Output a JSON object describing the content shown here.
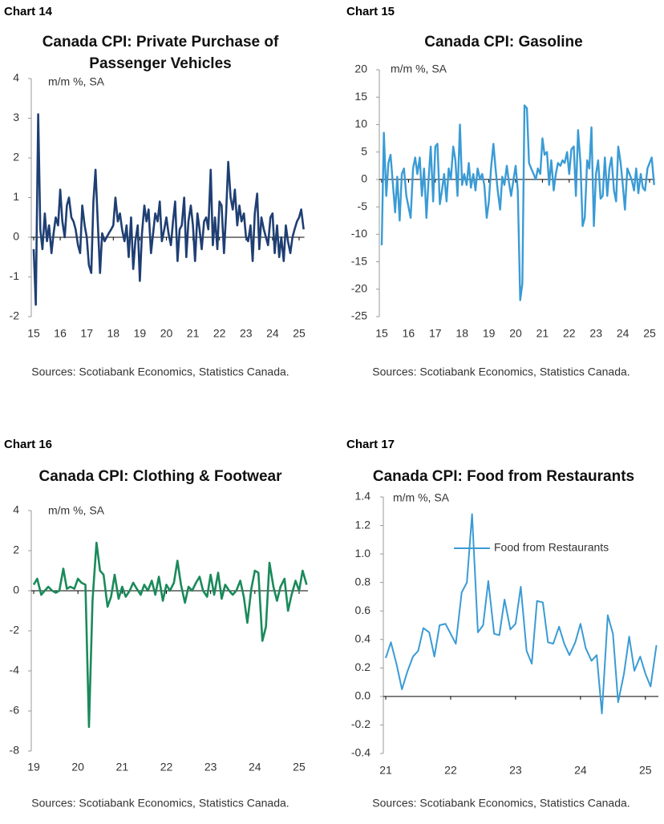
{
  "chart_data": [
    {
      "type": "line",
      "label": "Chart 14",
      "title": [
        "Canada CPI: Private Purchase of",
        "Passenger Vehicles"
      ],
      "unit": "m/m %, SA",
      "source": "Sources: Scotiabank Economics, Statistics Canada.",
      "xlim": [
        15,
        25.2
      ],
      "xticks": [
        15,
        16,
        17,
        18,
        19,
        20,
        21,
        22,
        23,
        24,
        25
      ],
      "ylim": [
        -2,
        4
      ],
      "yticks": [
        -2,
        -1,
        0,
        1,
        2,
        3,
        4
      ],
      "x": [
        15.0,
        15.08,
        15.17,
        15.25,
        15.33,
        15.42,
        15.5,
        15.58,
        15.67,
        15.75,
        15.83,
        15.92,
        16.0,
        16.08,
        16.17,
        16.25,
        16.33,
        16.42,
        16.5,
        16.58,
        16.67,
        16.75,
        16.83,
        16.92,
        17.0,
        17.08,
        17.17,
        17.25,
        17.33,
        17.42,
        17.5,
        17.58,
        17.67,
        17.75,
        17.83,
        17.92,
        18.0,
        18.08,
        18.17,
        18.25,
        18.33,
        18.42,
        18.5,
        18.58,
        18.67,
        18.75,
        18.83,
        18.92,
        19.0,
        19.08,
        19.17,
        19.25,
        19.33,
        19.42,
        19.5,
        19.58,
        19.67,
        19.75,
        19.83,
        19.92,
        20.0,
        20.08,
        20.17,
        20.25,
        20.33,
        20.42,
        20.5,
        20.58,
        20.67,
        20.75,
        20.83,
        20.92,
        21.0,
        21.08,
        21.17,
        21.25,
        21.33,
        21.42,
        21.5,
        21.58,
        21.67,
        21.75,
        21.83,
        21.92,
        22.0,
        22.08,
        22.17,
        22.25,
        22.33,
        22.42,
        22.5,
        22.58,
        22.67,
        22.75,
        22.83,
        22.92,
        23.0,
        23.08,
        23.17,
        23.25,
        23.33,
        23.42,
        23.5,
        23.58,
        23.67,
        23.75,
        23.83,
        23.92,
        24.0,
        24.08,
        24.17,
        24.25,
        24.33,
        24.42,
        24.5,
        24.58,
        24.67,
        24.75,
        24.83,
        24.92,
        25.0,
        25.08,
        25.17
      ],
      "series": [
        {
          "color": "#1f3f73",
          "values": [
            -0.3,
            -1.7,
            3.1,
            0.2,
            -0.3,
            0.6,
            -0.1,
            0.3,
            -0.4,
            0.1,
            0.5,
            0.3,
            1.2,
            0.4,
            0.0,
            0.8,
            1.0,
            0.5,
            0.4,
            0.2,
            -0.2,
            -0.4,
            0.8,
            0.3,
            0.0,
            -0.7,
            -0.9,
            0.9,
            1.7,
            0.3,
            -0.9,
            0.1,
            -0.1,
            0.0,
            0.1,
            0.2,
            0.3,
            1.0,
            0.4,
            0.6,
            0.2,
            -0.1,
            0.3,
            -0.5,
            0.5,
            -0.8,
            -0.1,
            0.3,
            -1.1,
            0.1,
            0.8,
            0.4,
            0.7,
            -0.4,
            0.1,
            0.6,
            0.4,
            0.9,
            -0.1,
            0.2,
            0.5,
            0.1,
            -0.2,
            0.4,
            0.9,
            -0.6,
            0.2,
            0.3,
            1.0,
            -0.5,
            0.4,
            0.8,
            0.3,
            -0.6,
            0.6,
            0.2,
            -0.3,
            0.4,
            0.5,
            0.2,
            1.7,
            -0.2,
            0.5,
            -0.3,
            0.9,
            0.8,
            -0.4,
            0.6,
            1.9,
            1.0,
            0.7,
            1.2,
            0.3,
            0.8,
            0.4,
            0.6,
            0.0,
            -0.1,
            0.3,
            -0.6,
            0.6,
            1.1,
            -0.3,
            0.5,
            0.2,
            0.0,
            -0.2,
            0.5,
            0.6,
            -0.4,
            0.3,
            -0.5,
            0.0,
            -0.6,
            0.3,
            -0.1,
            -0.4,
            0.0,
            0.2,
            0.4,
            0.5,
            0.7,
            0.2
          ]
        }
      ]
    },
    {
      "type": "line",
      "label": "Chart 15",
      "title": [
        "Canada CPI: Gasoline"
      ],
      "unit": "m/m %, SA",
      "source": "Sources: Scotiabank Economics, Statistics Canada.",
      "xlim": [
        15,
        25.2
      ],
      "xticks": [
        15,
        16,
        17,
        18,
        19,
        20,
        21,
        22,
        23,
        24,
        25
      ],
      "ylim": [
        -25,
        20
      ],
      "yticks": [
        -25,
        -20,
        -15,
        -10,
        -5,
        0,
        5,
        10,
        15,
        20
      ],
      "x": [
        15.0,
        15.08,
        15.17,
        15.25,
        15.33,
        15.42,
        15.5,
        15.58,
        15.67,
        15.75,
        15.83,
        15.92,
        16.0,
        16.08,
        16.17,
        16.25,
        16.33,
        16.42,
        16.5,
        16.58,
        16.67,
        16.75,
        16.83,
        16.92,
        17.0,
        17.08,
        17.17,
        17.25,
        17.33,
        17.42,
        17.5,
        17.58,
        17.67,
        17.75,
        17.83,
        17.92,
        18.0,
        18.08,
        18.17,
        18.25,
        18.33,
        18.42,
        18.5,
        18.58,
        18.67,
        18.75,
        18.83,
        18.92,
        19.0,
        19.08,
        19.17,
        19.25,
        19.33,
        19.42,
        19.5,
        19.58,
        19.67,
        19.75,
        19.83,
        19.92,
        20.0,
        20.08,
        20.17,
        20.25,
        20.33,
        20.42,
        20.5,
        20.58,
        20.67,
        20.75,
        20.83,
        20.92,
        21.0,
        21.08,
        21.17,
        21.25,
        21.33,
        21.42,
        21.5,
        21.58,
        21.67,
        21.75,
        21.83,
        21.92,
        22.0,
        22.08,
        22.17,
        22.25,
        22.33,
        22.42,
        22.5,
        22.58,
        22.67,
        22.75,
        22.83,
        22.92,
        23.0,
        23.08,
        23.17,
        23.25,
        23.33,
        23.42,
        23.5,
        23.58,
        23.67,
        23.75,
        23.83,
        23.92,
        24.0,
        24.08,
        24.17,
        24.25,
        24.33,
        24.42,
        24.5,
        24.58,
        24.67,
        24.75,
        24.83,
        24.92,
        25.0,
        25.08,
        25.17
      ],
      "series": [
        {
          "color": "#3a9bd5",
          "values": [
            -12,
            8.5,
            -3,
            3,
            4.5,
            -1,
            -6,
            0.5,
            -7.5,
            1,
            2,
            -3,
            -5,
            -7,
            2,
            4,
            1,
            4,
            -3,
            2,
            -7,
            0,
            6,
            -4,
            6,
            6.5,
            -4.5,
            -2,
            1,
            -4,
            2,
            0,
            6,
            3.5,
            -3,
            10,
            -1,
            1,
            -1,
            3,
            -1.5,
            1,
            -2,
            2,
            0,
            1,
            -1,
            -7,
            -4,
            2,
            6.5,
            2,
            -2,
            -5.5,
            0.5,
            -1,
            2.5,
            -0.5,
            -3,
            0,
            2.5,
            -2,
            -22,
            -19,
            13.5,
            13,
            3,
            2,
            1,
            0,
            2,
            1,
            7.5,
            4.5,
            5,
            -1,
            3.5,
            -2,
            1,
            3,
            2.5,
            3.5,
            3,
            5,
            1,
            5.5,
            6,
            -3,
            9,
            3,
            -8.5,
            -7,
            3.5,
            2,
            9.5,
            -8.5,
            1,
            3.5,
            -3.5,
            -3,
            4,
            -3,
            2,
            4,
            -2,
            -4,
            6,
            3,
            -1,
            -5.5,
            2,
            1,
            0,
            -2,
            2,
            -2.5,
            1,
            -1.5,
            -2,
            2,
            3,
            4,
            -1
          ]
        }
      ]
    },
    {
      "type": "line",
      "label": "Chart 16",
      "title": [
        "Canada CPI: Clothing & Footwear"
      ],
      "unit": "m/m %, SA",
      "source": "Sources: Scotiabank Economics, Statistics Canada.",
      "xlim": [
        19,
        25.2
      ],
      "xticks": [
        19,
        20,
        21,
        22,
        23,
        24,
        25
      ],
      "ylim": [
        -8,
        4
      ],
      "yticks": [
        -8,
        -6,
        -4,
        -2,
        0,
        2,
        4
      ],
      "x": [
        19.0,
        19.08,
        19.17,
        19.25,
        19.33,
        19.42,
        19.5,
        19.58,
        19.67,
        19.75,
        19.83,
        19.92,
        20.0,
        20.08,
        20.17,
        20.25,
        20.33,
        20.42,
        20.5,
        20.58,
        20.67,
        20.75,
        20.83,
        20.92,
        21.0,
        21.08,
        21.17,
        21.25,
        21.33,
        21.42,
        21.5,
        21.58,
        21.67,
        21.75,
        21.83,
        21.92,
        22.0,
        22.08,
        22.17,
        22.25,
        22.33,
        22.42,
        22.5,
        22.58,
        22.67,
        22.75,
        22.83,
        22.92,
        23.0,
        23.08,
        23.17,
        23.25,
        23.33,
        23.42,
        23.5,
        23.58,
        23.67,
        23.75,
        23.83,
        23.92,
        24.0,
        24.08,
        24.17,
        24.25,
        24.33,
        24.42,
        24.5,
        24.58,
        24.67,
        24.75,
        24.83,
        24.92,
        25.0,
        25.08,
        25.17
      ],
      "series": [
        {
          "color": "#1a8a5a",
          "values": [
            0.3,
            0.6,
            -0.2,
            0.0,
            0.2,
            0.0,
            -0.1,
            0.0,
            1.1,
            0.1,
            0.2,
            0.1,
            0.6,
            0.4,
            0.3,
            -6.8,
            -0.5,
            2.4,
            1.0,
            0.8,
            -0.8,
            -0.3,
            0.8,
            -0.4,
            0.2,
            -0.3,
            0.0,
            0.4,
            0.1,
            -0.2,
            0.3,
            0.0,
            0.5,
            -0.2,
            0.7,
            -0.5,
            0.3,
            0.0,
            0.4,
            1.5,
            0.3,
            -0.6,
            0.2,
            0.0,
            0.4,
            0.7,
            0.0,
            -0.3,
            0.8,
            -0.2,
            0.9,
            -0.4,
            0.3,
            0.0,
            -0.2,
            0.0,
            0.5,
            -0.3,
            -1.6,
            0.1,
            1.0,
            0.9,
            -2.5,
            -1.8,
            1.4,
            0.2,
            -0.5,
            0.2,
            0.6,
            -1.0,
            -0.2,
            0.5,
            0.0,
            1.0,
            0.3
          ]
        }
      ]
    },
    {
      "type": "line",
      "label": "Chart 17",
      "title": [
        "Canada CPI: Food from Restaurants"
      ],
      "unit": "m/m %, SA",
      "source": "Sources: Scotiabank Economics, Statistics Canada.",
      "xlim": [
        21,
        25.2
      ],
      "xticks": [
        21,
        22,
        23,
        24,
        25
      ],
      "ylim": [
        -0.4,
        1.4
      ],
      "yticks": [
        -0.4,
        -0.2,
        {
          "value": 0,
          "label": "0.0"
        },
        0.2,
        0.4,
        0.6,
        0.8,
        {
          "value": 1,
          "label": "1.0"
        },
        1.2,
        1.4
      ],
      "legend": "top",
      "x": [
        21.0,
        21.08,
        21.17,
        21.25,
        21.33,
        21.42,
        21.5,
        21.58,
        21.67,
        21.75,
        21.83,
        21.92,
        22.0,
        22.08,
        22.17,
        22.25,
        22.33,
        22.42,
        22.5,
        22.58,
        22.67,
        22.75,
        22.83,
        22.92,
        23.0,
        23.08,
        23.17,
        23.25,
        23.33,
        23.42,
        23.5,
        23.58,
        23.67,
        23.75,
        23.83,
        23.92,
        24.0,
        24.08,
        24.17,
        24.25,
        24.33,
        24.42,
        24.5,
        24.58,
        24.67,
        24.75,
        24.83,
        24.92,
        25.0,
        25.08,
        25.17
      ],
      "series": [
        {
          "name": "Food from Restaurants",
          "color": "#3a9bd5",
          "values": [
            0.27,
            0.38,
            0.22,
            0.05,
            0.17,
            0.28,
            0.32,
            0.48,
            0.45,
            0.28,
            0.5,
            0.51,
            0.44,
            0.37,
            0.73,
            0.8,
            1.28,
            0.45,
            0.5,
            0.81,
            0.44,
            0.43,
            0.68,
            0.47,
            0.51,
            0.77,
            0.32,
            0.23,
            0.67,
            0.66,
            0.38,
            0.37,
            0.49,
            0.37,
            0.29,
            0.38,
            0.51,
            0.34,
            0.25,
            0.29,
            -0.12,
            0.57,
            0.44,
            -0.04,
            0.16,
            0.42,
            0.18,
            0.28,
            0.16,
            0.07,
            0.36
          ]
        }
      ]
    }
  ]
}
